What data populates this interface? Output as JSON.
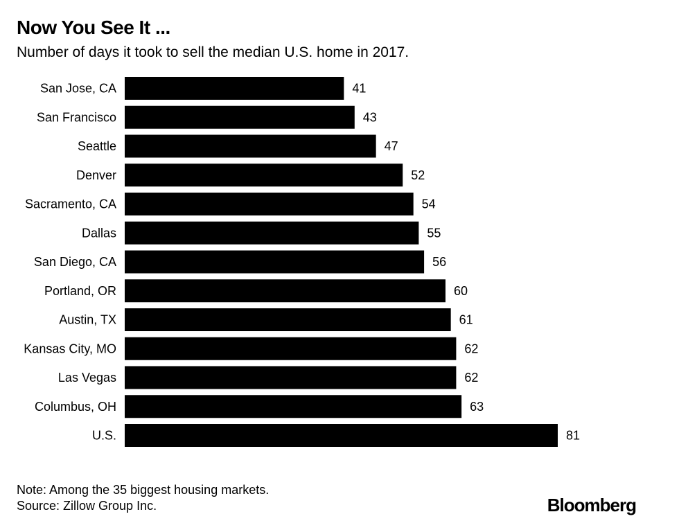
{
  "chart_data": {
    "type": "bar",
    "orientation": "horizontal",
    "title": "Now You See It ...",
    "subtitle": "Number of days it took to sell the median U.S. home in 2017.",
    "categories": [
      "San Jose, CA",
      "San Francisco",
      "Seattle",
      "Denver",
      "Sacramento, CA",
      "Dallas",
      "San Diego, CA",
      "Portland, OR",
      "Austin, TX",
      "Kansas City, MO",
      "Las Vegas",
      "Columbus, OH",
      "U.S."
    ],
    "values": [
      41,
      43,
      47,
      52,
      54,
      55,
      56,
      60,
      61,
      62,
      62,
      63,
      81
    ],
    "data_labels": [
      "41",
      "43",
      "47",
      "52",
      "54",
      "55",
      "56",
      "60",
      "61",
      "62",
      "62",
      "63",
      "81"
    ],
    "xlim": [
      0,
      81
    ],
    "grid": false,
    "bar_color": "#000000"
  },
  "footer": {
    "note": "Note: Among the 35 biggest housing markets.",
    "source": "Source: Zillow Group Inc.",
    "brand": "Bloomberg"
  }
}
